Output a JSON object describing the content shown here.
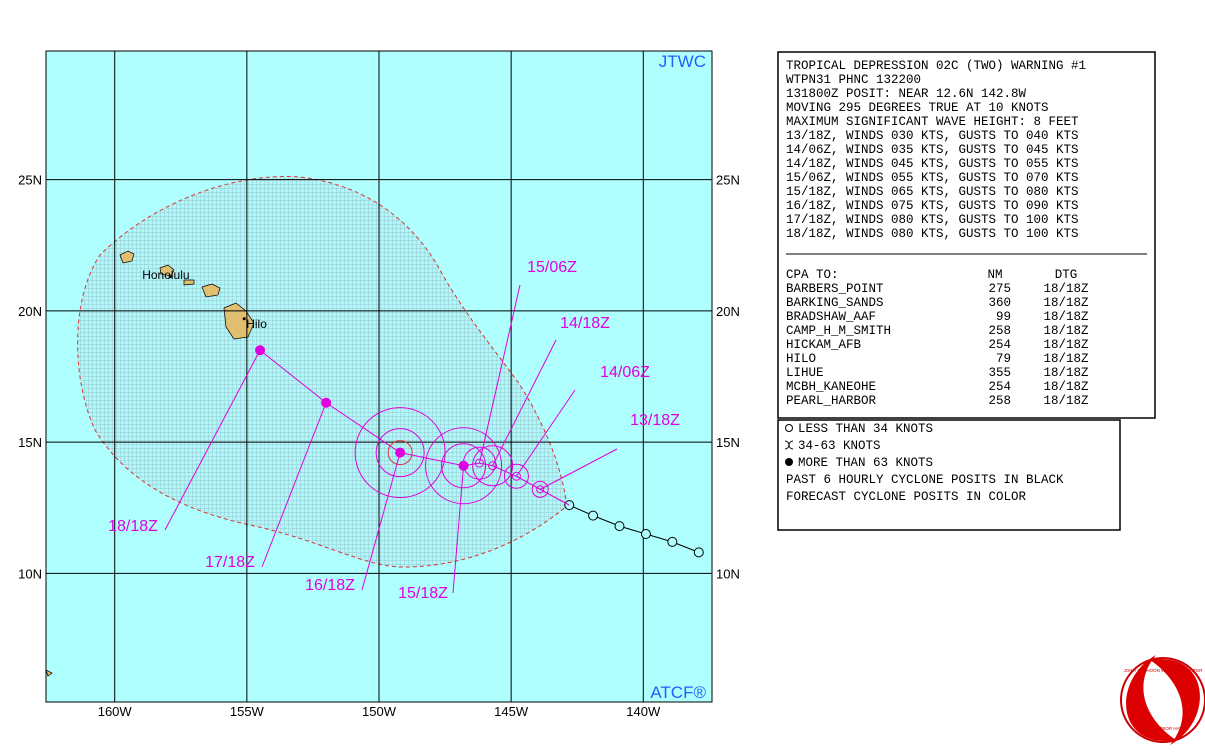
{
  "map": {
    "lon_range": [
      162.6,
      137.4
    ],
    "lat_range": [
      5.1,
      29.9
    ],
    "lon_ticks": [
      {
        "value": 160,
        "label": "160W"
      },
      {
        "value": 155,
        "label": "155W"
      },
      {
        "value": 150,
        "label": "150W"
      },
      {
        "value": 145,
        "label": "145W"
      },
      {
        "value": 140,
        "label": "140W"
      }
    ],
    "lat_ticks": [
      {
        "value": 25,
        "label": "25N"
      },
      {
        "value": 20,
        "label": "20N"
      },
      {
        "value": 15,
        "label": "15N"
      },
      {
        "value": 10,
        "label": "10N"
      }
    ],
    "brand": "JTWC",
    "credit": "ATCF®",
    "places": [
      {
        "name": "Honolulu",
        "lat": 21.3,
        "lon": 157.9
      },
      {
        "name": "Hilo",
        "lat": 19.7,
        "lon": 155.1
      }
    ],
    "past_track": [
      {
        "lat": 12.6,
        "lon": 142.8
      },
      {
        "lat": 12.2,
        "lon": 141.9
      },
      {
        "lat": 11.8,
        "lon": 140.9
      },
      {
        "lat": 11.5,
        "lon": 139.9
      },
      {
        "lat": 11.2,
        "lon": 138.9
      },
      {
        "lat": 10.8,
        "lon": 137.9
      }
    ],
    "forecast": [
      {
        "label": "13/18Z",
        "lat": 13.2,
        "lon": 143.9
      },
      {
        "label": "14/06Z",
        "lat": 13.7,
        "lon": 144.8
      },
      {
        "label": "14/18Z",
        "lat": 14.1,
        "lon": 145.7
      },
      {
        "label": "15/06Z",
        "lat": 14.2,
        "lon": 146.2
      },
      {
        "label": "15/18Z",
        "lat": 14.1,
        "lon": 146.8
      },
      {
        "label": "16/18Z",
        "lat": 14.6,
        "lon": 149.2
      },
      {
        "label": "17/18Z",
        "lat": 16.5,
        "lon": 152.0
      },
      {
        "label": "18/18Z",
        "lat": 18.5,
        "lon": 154.5
      }
    ]
  },
  "warning": {
    "lines": [
      "TROPICAL DEPRESSION 02C (TWO) WARNING #1",
      "WTPN31 PHNC 132200",
      "131800Z POSIT: NEAR 12.6N 142.8W",
      "MOVING 295 DEGREES TRUE AT 10 KNOTS",
      "MAXIMUM SIGNIFICANT WAVE HEIGHT: 8 FEET",
      "13/18Z, WINDS 030 KTS, GUSTS TO 040 KTS",
      "14/06Z, WINDS 035 KTS, GUSTS TO 045 KTS",
      "14/18Z, WINDS 045 KTS, GUSTS TO 055 KTS",
      "15/06Z, WINDS 055 KTS, GUSTS TO 070 KTS",
      "15/18Z, WINDS 065 KTS, GUSTS TO 080 KTS",
      "16/18Z, WINDS 075 KTS, GUSTS TO 090 KTS",
      "17/18Z, WINDS 080 KTS, GUSTS TO 100 KTS",
      "18/18Z, WINDS 080 KTS, GUSTS TO 100 KTS"
    ]
  },
  "cpa": {
    "header": [
      "CPA TO:",
      "NM",
      "DTG"
    ],
    "rows": [
      [
        "BARBERS_POINT",
        275,
        "18/18Z"
      ],
      [
        "BARKING_SANDS",
        360,
        "18/18Z"
      ],
      [
        "BRADSHAW_AAF",
        99,
        "18/18Z"
      ],
      [
        "CAMP_H_M_SMITH",
        258,
        "18/18Z"
      ],
      [
        "HICKAM_AFB",
        254,
        "18/18Z"
      ],
      [
        "HILO",
        79,
        "18/18Z"
      ],
      [
        "LIHUE",
        355,
        "18/18Z"
      ],
      [
        "MCBH_KANEOHE",
        254,
        "18/18Z"
      ],
      [
        "PEARL_HARBOR",
        258,
        "18/18Z"
      ]
    ]
  },
  "legend": [
    "LESS THAN 34 KNOTS",
    "34-63 KNOTS",
    "MORE THAN 63 KNOTS",
    "PAST 6 HOURLY CYCLONE POSITS IN BLACK",
    "FORECAST CYCLONE POSITS IN COLOR"
  ],
  "logo": [
    "JOINT TYPHOON WARNING CENTER",
    "PEARL HARBOR HAWAII"
  ]
}
